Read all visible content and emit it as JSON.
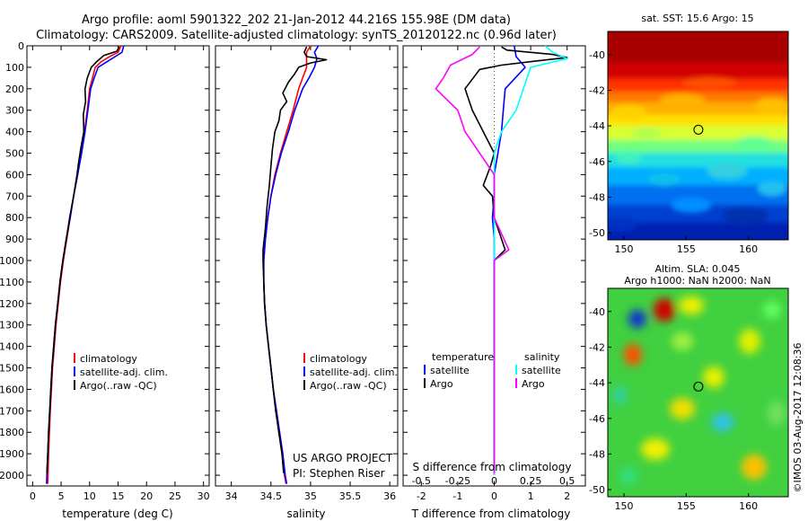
{
  "title_line1": "Argo profile: aoml 5901322_202 21-Jan-2012 44.216S 155.98E (DM data)",
  "title_line2": "Climatology: CARS2009. Satellite-adjusted climatology: synTS_20120122.nc (0.96d later)",
  "project_line1": "US ARGO PROJECT",
  "project_line2": "PI: Stephen Riser",
  "credit": "©IMOS 03-Aug-2017 12:08:36",
  "colors": {
    "climatology": "#ff0000",
    "satellite": "#0000ff",
    "argo": "#000000",
    "salinity_satellite": "#00ffff",
    "salinity_argo": "#ff00ff"
  },
  "chart_data": [
    {
      "type": "line",
      "xlabel": "temperature (deg C)",
      "xlim": [
        -1,
        31
      ],
      "xticks": [
        "0",
        "5",
        "10",
        "15",
        "20",
        "25",
        "30"
      ],
      "ylim": [
        2050,
        0
      ],
      "yticks": [
        "0",
        "100",
        "200",
        "300",
        "400",
        "500",
        "600",
        "700",
        "800",
        "900",
        "1000",
        "1100",
        "1200",
        "1300",
        "1400",
        "1500",
        "1600",
        "1700",
        "1800",
        "1900",
        "2000"
      ],
      "legend": [
        "climatology",
        "satellite-adj. clim.",
        "Argo(..raw -QC)"
      ],
      "series": [
        {
          "name": "climatology",
          "points": [
            [
              15.5,
              0
            ],
            [
              15.0,
              30
            ],
            [
              13.5,
              50
            ],
            [
              12.0,
              75
            ],
            [
              11.0,
              100
            ],
            [
              10.5,
              150
            ],
            [
              10.0,
              200
            ],
            [
              9.6,
              300
            ],
            [
              9.1,
              400
            ],
            [
              8.5,
              500
            ],
            [
              7.9,
              600
            ],
            [
              7.2,
              700
            ],
            [
              6.6,
              800
            ],
            [
              6.0,
              900
            ],
            [
              5.4,
              1000
            ],
            [
              4.9,
              1100
            ],
            [
              4.5,
              1200
            ],
            [
              4.1,
              1300
            ],
            [
              3.8,
              1400
            ],
            [
              3.5,
              1500
            ],
            [
              3.3,
              1600
            ],
            [
              3.1,
              1700
            ],
            [
              2.95,
              1800
            ],
            [
              2.8,
              1900
            ],
            [
              2.7,
              2000
            ],
            [
              2.65,
              2040
            ]
          ]
        },
        {
          "name": "satellite-adj. clim.",
          "points": [
            [
              16.0,
              0
            ],
            [
              15.7,
              30
            ],
            [
              14.5,
              50
            ],
            [
              13.0,
              75
            ],
            [
              11.5,
              100
            ],
            [
              10.8,
              150
            ],
            [
              10.2,
              200
            ],
            [
              9.7,
              300
            ],
            [
              9.2,
              400
            ],
            [
              8.6,
              500
            ],
            [
              7.9,
              600
            ],
            [
              7.2,
              700
            ],
            [
              6.6,
              800
            ],
            [
              5.9,
              900
            ],
            [
              5.3,
              1000
            ],
            [
              4.8,
              1100
            ],
            [
              4.4,
              1200
            ],
            [
              4.0,
              1300
            ],
            [
              3.7,
              1400
            ],
            [
              3.4,
              1500
            ],
            [
              3.2,
              1600
            ],
            [
              3.0,
              1700
            ],
            [
              2.8,
              1800
            ],
            [
              2.65,
              1900
            ],
            [
              2.5,
              2000
            ],
            [
              2.45,
              2040
            ]
          ]
        },
        {
          "name": "Argo(..raw -QC)",
          "points": [
            [
              15.2,
              5
            ],
            [
              14.8,
              25
            ],
            [
              12.5,
              45
            ],
            [
              11.2,
              75
            ],
            [
              10.3,
              100
            ],
            [
              9.6,
              150
            ],
            [
              9.2,
              200
            ],
            [
              9.3,
              260
            ],
            [
              8.9,
              320
            ],
            [
              9.0,
              400
            ],
            [
              8.5,
              470
            ],
            [
              8.1,
              540
            ],
            [
              7.8,
              600
            ],
            [
              7.2,
              700
            ],
            [
              6.5,
              800
            ],
            [
              5.9,
              900
            ],
            [
              5.3,
              1000
            ],
            [
              4.8,
              1100
            ],
            [
              4.4,
              1200
            ],
            [
              4.0,
              1300
            ],
            [
              3.7,
              1400
            ],
            [
              3.4,
              1500
            ],
            [
              3.2,
              1600
            ],
            [
              3.0,
              1700
            ],
            [
              2.8,
              1800
            ],
            [
              2.65,
              1900
            ],
            [
              2.5,
              1990
            ]
          ]
        }
      ]
    },
    {
      "type": "line",
      "xlabel": "salinity",
      "xlim": [
        33.8,
        36.1
      ],
      "xticks": [
        "34",
        "34.5",
        "35",
        "35.5",
        "36"
      ],
      "ylim": [
        2050,
        0
      ],
      "legend": [
        "climatology",
        "satellite-adj. clim.",
        "Argo(..raw -QC)"
      ],
      "series": [
        {
          "name": "climatology",
          "points": [
            [
              35.0,
              0
            ],
            [
              34.95,
              30
            ],
            [
              34.95,
              60
            ],
            [
              34.95,
              100
            ],
            [
              34.9,
              150
            ],
            [
              34.85,
              200
            ],
            [
              34.78,
              300
            ],
            [
              34.7,
              400
            ],
            [
              34.62,
              500
            ],
            [
              34.55,
              600
            ],
            [
              34.5,
              700
            ],
            [
              34.46,
              800
            ],
            [
              34.43,
              900
            ],
            [
              34.41,
              1000
            ],
            [
              34.41,
              1100
            ],
            [
              34.42,
              1200
            ],
            [
              34.44,
              1300
            ],
            [
              34.47,
              1400
            ],
            [
              34.5,
              1500
            ],
            [
              34.53,
              1600
            ],
            [
              34.56,
              1700
            ],
            [
              34.6,
              1800
            ],
            [
              34.64,
              1900
            ],
            [
              34.67,
              2000
            ],
            [
              34.69,
              2040
            ]
          ]
        },
        {
          "name": "satellite-adj. clim.",
          "points": [
            [
              35.1,
              0
            ],
            [
              35.05,
              30
            ],
            [
              35.08,
              60
            ],
            [
              35.05,
              100
            ],
            [
              34.98,
              150
            ],
            [
              34.9,
              200
            ],
            [
              34.8,
              300
            ],
            [
              34.72,
              400
            ],
            [
              34.63,
              500
            ],
            [
              34.56,
              600
            ],
            [
              34.5,
              700
            ],
            [
              34.46,
              800
            ],
            [
              34.43,
              900
            ],
            [
              34.41,
              1000
            ],
            [
              34.41,
              1100
            ],
            [
              34.42,
              1200
            ],
            [
              34.44,
              1300
            ],
            [
              34.47,
              1400
            ],
            [
              34.5,
              1500
            ],
            [
              34.53,
              1600
            ],
            [
              34.57,
              1700
            ],
            [
              34.61,
              1800
            ],
            [
              34.65,
              1900
            ],
            [
              34.68,
              2000
            ],
            [
              34.7,
              2040
            ]
          ]
        },
        {
          "name": "Argo(..raw -QC)",
          "points": [
            [
              34.95,
              5
            ],
            [
              34.92,
              30
            ],
            [
              34.95,
              50
            ],
            [
              35.2,
              65
            ],
            [
              35.0,
              80
            ],
            [
              34.85,
              100
            ],
            [
              34.8,
              130
            ],
            [
              34.72,
              170
            ],
            [
              34.65,
              220
            ],
            [
              34.7,
              260
            ],
            [
              34.62,
              300
            ],
            [
              34.6,
              350
            ],
            [
              34.55,
              400
            ],
            [
              34.52,
              480
            ],
            [
              34.5,
              560
            ],
            [
              34.48,
              650
            ],
            [
              34.45,
              750
            ],
            [
              34.43,
              850
            ],
            [
              34.4,
              950
            ],
            [
              34.4,
              1000
            ],
            [
              34.41,
              1100
            ],
            [
              34.42,
              1200
            ],
            [
              34.44,
              1300
            ],
            [
              34.47,
              1400
            ],
            [
              34.5,
              1500
            ],
            [
              34.53,
              1600
            ],
            [
              34.56,
              1700
            ],
            [
              34.6,
              1800
            ],
            [
              34.64,
              1900
            ],
            [
              34.66,
              1990
            ]
          ]
        }
      ]
    },
    {
      "type": "line",
      "xlabel": "T difference from climatology",
      "xlabel2": "S difference from climatology",
      "xlim": [
        -2.5,
        2.5
      ],
      "xticks_T": [
        "-2",
        "-1",
        "0",
        "1",
        "2"
      ],
      "xticks_S": [
        "-0.5",
        "-0.25",
        "0",
        "0.25",
        "0.5"
      ],
      "ylim": [
        2050,
        0
      ],
      "legend_temperature": {
        "header": "temperature",
        "items": [
          "satellite",
          "Argo"
        ]
      },
      "legend_salinity": {
        "header": "salinity",
        "items": [
          "satellite",
          "Argo"
        ]
      },
      "series": [
        {
          "name": "satellite",
          "group": "temperature",
          "points": [
            [
              0.55,
              0
            ],
            [
              0.6,
              50
            ],
            [
              0.85,
              100
            ],
            [
              0.3,
              200
            ],
            [
              0.25,
              300
            ],
            [
              0.2,
              400
            ],
            [
              0.1,
              500
            ],
            [
              0.0,
              600
            ],
            [
              0.0,
              700
            ],
            [
              -0.05,
              800
            ],
            [
              0.0,
              900
            ],
            [
              0.0,
              1000
            ],
            [
              0.0,
              1500
            ],
            [
              0.0,
              2000
            ]
          ]
        },
        {
          "name": "Argo",
          "group": "temperature",
          "points": [
            [
              0.2,
              5
            ],
            [
              0.35,
              20
            ],
            [
              1.6,
              40
            ],
            [
              2.0,
              55
            ],
            [
              1.2,
              70
            ],
            [
              0.2,
              90
            ],
            [
              -0.4,
              110
            ],
            [
              -0.8,
              200
            ],
            [
              -0.6,
              300
            ],
            [
              -0.3,
              400
            ],
            [
              0.0,
              500
            ],
            [
              -0.1,
              560
            ],
            [
              -0.3,
              650
            ],
            [
              -0.05,
              700
            ],
            [
              0.0,
              800
            ],
            [
              0.3,
              950
            ],
            [
              0.0,
              1000
            ],
            [
              0.0,
              1500
            ],
            [
              0.0,
              1990
            ]
          ]
        },
        {
          "name": "satellite",
          "group": "salinity",
          "points": [
            [
              0.35,
              0
            ],
            [
              0.4,
              30
            ],
            [
              0.5,
              60
            ],
            [
              0.25,
              100
            ],
            [
              0.2,
              200
            ],
            [
              0.15,
              300
            ],
            [
              0.05,
              400
            ],
            [
              0.0,
              500
            ],
            [
              0.0,
              1000
            ],
            [
              0.0,
              1500
            ],
            [
              0.0,
              2000
            ]
          ]
        },
        {
          "name": "Argo",
          "group": "salinity",
          "points": [
            [
              -0.1,
              5
            ],
            [
              -0.15,
              40
            ],
            [
              -0.3,
              90
            ],
            [
              -0.35,
              150
            ],
            [
              -0.4,
              200
            ],
            [
              -0.25,
              300
            ],
            [
              -0.2,
              400
            ],
            [
              0.0,
              600
            ],
            [
              0.0,
              800
            ],
            [
              0.1,
              950
            ],
            [
              0.0,
              1000
            ],
            [
              0.0,
              1500
            ],
            [
              0.0,
              1990
            ]
          ]
        }
      ]
    },
    {
      "type": "heatmap",
      "title": "sat. SST: 15.6 Argo: 15",
      "xlim": [
        148.7,
        163.2
      ],
      "ylim": [
        -50.4,
        -38.7
      ],
      "xticks": [
        "150",
        "155",
        "160"
      ],
      "yticks": [
        "-40",
        "-42",
        "-44",
        "-46",
        "-48",
        "-50"
      ],
      "marker": [
        155.98,
        -44.216
      ]
    },
    {
      "type": "heatmap",
      "title_line1": "Altim. SLA: 0.045",
      "title_line2": "Argo h1000: NaN h2000: NaN",
      "xlim": [
        148.7,
        163.2
      ],
      "ylim": [
        -50.4,
        -38.7
      ],
      "xticks": [
        "150",
        "155",
        "160"
      ],
      "yticks": [
        "-40",
        "-42",
        "-44",
        "-46",
        "-48",
        "-50"
      ],
      "marker": [
        155.98,
        -44.216
      ]
    }
  ]
}
